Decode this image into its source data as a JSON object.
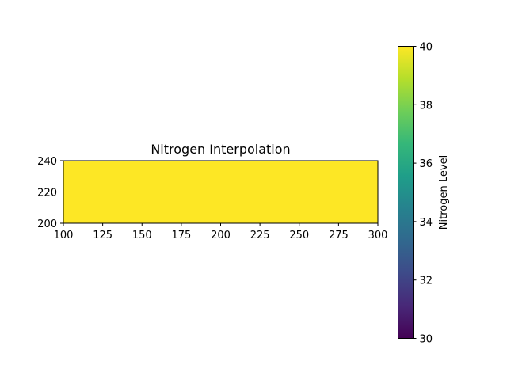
{
  "chart_data": {
    "type": "heatmap",
    "title": "Nitrogen Interpolation",
    "xlabel": "",
    "ylabel": "",
    "xlim": [
      100,
      300
    ],
    "ylim": [
      200,
      240
    ],
    "x_ticks": [
      100,
      125,
      150,
      175,
      200,
      225,
      250,
      275,
      300
    ],
    "y_ticks": [
      200,
      220,
      240
    ],
    "grid": false,
    "cells": [
      {
        "x0": 100,
        "x1": 300,
        "y0": 200,
        "y1": 240,
        "value": 40
      }
    ],
    "colorbar": {
      "label": "Nitrogen Level",
      "colormap": "viridis",
      "range": [
        30,
        40
      ],
      "ticks": [
        30,
        32,
        34,
        36,
        38,
        40
      ]
    },
    "colors": {
      "viridis_stops": [
        "#440154",
        "#482878",
        "#3e4a89",
        "#31688e",
        "#26828e",
        "#1f9e89",
        "#35b779",
        "#6ece58",
        "#b5de2b",
        "#fde725"
      ]
    }
  }
}
